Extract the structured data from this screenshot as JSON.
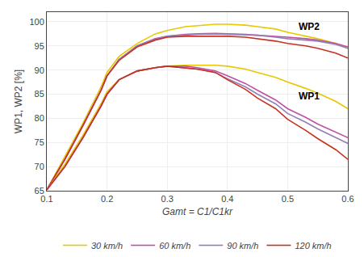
{
  "chart_data": {
    "type": "line",
    "x": [
      0.1,
      0.13,
      0.16,
      0.19,
      0.2,
      0.22,
      0.25,
      0.28,
      0.3,
      0.33,
      0.35,
      0.38,
      0.4,
      0.43,
      0.45,
      0.48,
      0.5,
      0.53,
      0.55,
      0.58,
      0.6
    ],
    "series": [
      {
        "name": "30 km/h",
        "color": "#e8c800",
        "values": [
          65.2,
          72.0,
          79.0,
          86.5,
          89.5,
          92.8,
          95.5,
          97.5,
          98.2,
          99.0,
          99.2,
          99.5,
          99.5,
          99.3,
          99.0,
          98.5,
          97.8,
          97.0,
          96.5,
          95.5,
          94.5
        ]
      },
      {
        "name": "60 km/h",
        "color": "#c050a0",
        "values": [
          65.2,
          71.5,
          78.5,
          85.8,
          88.8,
          92.2,
          95.0,
          96.5,
          97.0,
          97.4,
          97.5,
          97.6,
          97.5,
          97.4,
          97.2,
          97.0,
          96.8,
          96.5,
          96.2,
          95.5,
          94.8
        ]
      },
      {
        "name": "90 km/h",
        "color": "#9080b8",
        "values": [
          65.2,
          71.5,
          78.5,
          85.8,
          88.8,
          92.2,
          95.0,
          96.4,
          97.0,
          97.3,
          97.4,
          97.5,
          97.4,
          97.3,
          97.2,
          96.8,
          96.5,
          96.2,
          96.0,
          95.3,
          94.5
        ]
      },
      {
        "name": "120 km/h",
        "color": "#c83020",
        "values": [
          65.2,
          71.5,
          78.5,
          85.8,
          88.8,
          92.0,
          94.8,
          96.2,
          96.8,
          97.0,
          97.0,
          97.0,
          97.0,
          96.8,
          96.5,
          96.0,
          95.5,
          95.0,
          94.5,
          93.5,
          92.5
        ]
      },
      {
        "name": "30 km/h",
        "color": "#e8c800",
        "values": [
          65.2,
          70.5,
          76.5,
          83.0,
          85.5,
          88.0,
          89.8,
          90.5,
          90.8,
          91.0,
          91.0,
          91.0,
          90.8,
          90.2,
          89.5,
          88.5,
          87.5,
          86.2,
          85.2,
          83.5,
          82.0
        ]
      },
      {
        "name": "60 km/h",
        "color": "#c050a0",
        "values": [
          65.2,
          70.0,
          76.0,
          82.5,
          85.0,
          88.0,
          89.8,
          90.5,
          90.8,
          90.8,
          90.5,
          89.8,
          88.8,
          87.2,
          85.8,
          83.8,
          82.0,
          80.2,
          78.8,
          77.2,
          76.0
        ]
      },
      {
        "name": "90 km/h",
        "color": "#9080b8",
        "values": [
          65.2,
          70.0,
          76.0,
          82.5,
          85.0,
          88.0,
          89.8,
          90.5,
          90.8,
          90.5,
          90.2,
          89.5,
          88.2,
          86.5,
          85.0,
          83.0,
          81.0,
          79.2,
          77.8,
          76.0,
          74.8
        ]
      },
      {
        "name": "120 km/h",
        "color": "#c83020",
        "values": [
          65.2,
          70.0,
          76.0,
          82.5,
          85.0,
          88.0,
          89.8,
          90.5,
          90.8,
          90.5,
          90.2,
          89.5,
          88.0,
          86.0,
          84.2,
          82.0,
          79.8,
          77.5,
          75.8,
          73.5,
          71.5
        ]
      }
    ],
    "xlabel": "Gamt = C1/C1kr",
    "ylabel": "WP1, WP2 [%]",
    "xlim": [
      0.1,
      0.6
    ],
    "ylim": [
      65,
      102
    ],
    "xticks": [
      0.1,
      0.2,
      0.3,
      0.4,
      0.5,
      0.6
    ],
    "yticks": [
      65,
      70,
      75,
      80,
      85,
      90,
      95,
      100
    ],
    "annotations": [
      {
        "text": "WP2",
        "x": 0.515,
        "y": 97.5
      },
      {
        "text": "WP1",
        "x": 0.515,
        "y": 83.0
      }
    ],
    "grid": true,
    "legend": "bottom"
  }
}
